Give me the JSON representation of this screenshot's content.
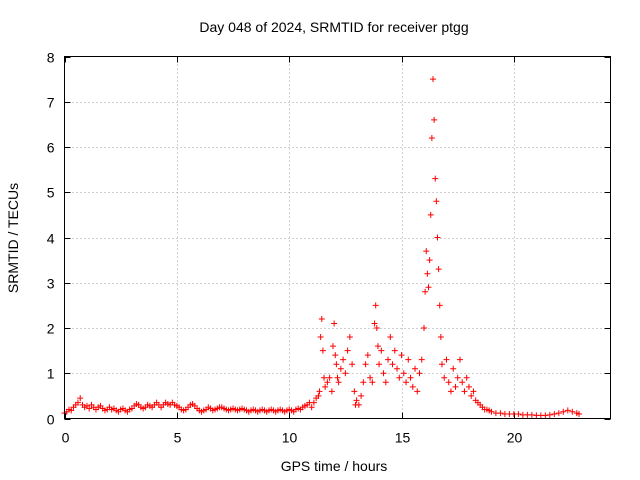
{
  "chart_data": {
    "type": "scatter",
    "title": "Day 048 of 2024, SRMTID for receiver ptgg",
    "xlabel": "GPS time / hours",
    "ylabel": "SRMTID / TECUs",
    "xlim": [
      0,
      24.3
    ],
    "ylim": [
      0,
      8
    ],
    "xticks": [
      0,
      5,
      10,
      15,
      20
    ],
    "yticks": [
      0,
      1,
      2,
      3,
      4,
      5,
      6,
      7,
      8
    ],
    "grid": true,
    "marker": "+",
    "color": "#ff0000",
    "series": [
      {
        "name": "SRMTID",
        "points": [
          [
            0.0,
            0.12
          ],
          [
            0.1,
            0.15
          ],
          [
            0.2,
            0.2
          ],
          [
            0.3,
            0.18
          ],
          [
            0.4,
            0.25
          ],
          [
            0.5,
            0.3
          ],
          [
            0.6,
            0.35
          ],
          [
            0.7,
            0.45
          ],
          [
            0.8,
            0.3
          ],
          [
            0.9,
            0.25
          ],
          [
            1.0,
            0.28
          ],
          [
            1.1,
            0.22
          ],
          [
            1.2,
            0.3
          ],
          [
            1.3,
            0.25
          ],
          [
            1.4,
            0.2
          ],
          [
            1.5,
            0.25
          ],
          [
            1.6,
            0.28
          ],
          [
            1.7,
            0.22
          ],
          [
            1.8,
            0.18
          ],
          [
            1.9,
            0.2
          ],
          [
            2.0,
            0.25
          ],
          [
            2.1,
            0.2
          ],
          [
            2.2,
            0.22
          ],
          [
            2.3,
            0.18
          ],
          [
            2.4,
            0.15
          ],
          [
            2.5,
            0.2
          ],
          [
            2.6,
            0.22
          ],
          [
            2.7,
            0.18
          ],
          [
            2.8,
            0.15
          ],
          [
            2.9,
            0.2
          ],
          [
            3.0,
            0.22
          ],
          [
            3.1,
            0.28
          ],
          [
            3.2,
            0.32
          ],
          [
            3.3,
            0.3
          ],
          [
            3.4,
            0.25
          ],
          [
            3.5,
            0.22
          ],
          [
            3.6,
            0.25
          ],
          [
            3.7,
            0.3
          ],
          [
            3.8,
            0.28
          ],
          [
            3.9,
            0.25
          ],
          [
            4.0,
            0.3
          ],
          [
            4.1,
            0.35
          ],
          [
            4.2,
            0.3
          ],
          [
            4.3,
            0.25
          ],
          [
            4.4,
            0.3
          ],
          [
            4.5,
            0.35
          ],
          [
            4.6,
            0.32
          ],
          [
            4.7,
            0.3
          ],
          [
            4.8,
            0.35
          ],
          [
            4.9,
            0.3
          ],
          [
            5.0,
            0.28
          ],
          [
            5.1,
            0.25
          ],
          [
            5.2,
            0.2
          ],
          [
            5.3,
            0.18
          ],
          [
            5.4,
            0.2
          ],
          [
            5.5,
            0.25
          ],
          [
            5.6,
            0.3
          ],
          [
            5.7,
            0.32
          ],
          [
            5.8,
            0.28
          ],
          [
            5.9,
            0.22
          ],
          [
            6.0,
            0.18
          ],
          [
            6.1,
            0.15
          ],
          [
            6.2,
            0.18
          ],
          [
            6.3,
            0.2
          ],
          [
            6.4,
            0.25
          ],
          [
            6.5,
            0.22
          ],
          [
            6.6,
            0.18
          ],
          [
            6.7,
            0.2
          ],
          [
            6.8,
            0.22
          ],
          [
            6.9,
            0.25
          ],
          [
            7.0,
            0.25
          ],
          [
            7.1,
            0.22
          ],
          [
            7.2,
            0.2
          ],
          [
            7.3,
            0.18
          ],
          [
            7.4,
            0.2
          ],
          [
            7.5,
            0.22
          ],
          [
            7.6,
            0.2
          ],
          [
            7.7,
            0.18
          ],
          [
            7.8,
            0.2
          ],
          [
            7.9,
            0.22
          ],
          [
            8.0,
            0.2
          ],
          [
            8.1,
            0.18
          ],
          [
            8.2,
            0.15
          ],
          [
            8.3,
            0.18
          ],
          [
            8.4,
            0.2
          ],
          [
            8.5,
            0.18
          ],
          [
            8.6,
            0.15
          ],
          [
            8.7,
            0.18
          ],
          [
            8.8,
            0.2
          ],
          [
            8.9,
            0.18
          ],
          [
            9.0,
            0.15
          ],
          [
            9.1,
            0.18
          ],
          [
            9.2,
            0.2
          ],
          [
            9.3,
            0.18
          ],
          [
            9.4,
            0.15
          ],
          [
            9.5,
            0.18
          ],
          [
            9.6,
            0.2
          ],
          [
            9.7,
            0.18
          ],
          [
            9.8,
            0.15
          ],
          [
            9.9,
            0.18
          ],
          [
            10.0,
            0.2
          ],
          [
            10.1,
            0.18
          ],
          [
            10.2,
            0.15
          ],
          [
            10.3,
            0.2
          ],
          [
            10.4,
            0.22
          ],
          [
            10.5,
            0.2
          ],
          [
            10.6,
            0.25
          ],
          [
            10.7,
            0.28
          ],
          [
            10.8,
            0.3
          ],
          [
            10.9,
            0.35
          ],
          [
            11.0,
            0.25
          ],
          [
            11.1,
            0.35
          ],
          [
            11.2,
            0.45
          ],
          [
            11.3,
            0.5
          ],
          [
            11.35,
            0.6
          ],
          [
            11.4,
            1.8
          ],
          [
            11.45,
            2.2
          ],
          [
            11.5,
            1.5
          ],
          [
            11.55,
            0.9
          ],
          [
            11.6,
            0.7
          ],
          [
            11.7,
            0.8
          ],
          [
            11.8,
            0.9
          ],
          [
            11.9,
            0.6
          ],
          [
            11.95,
            1.6
          ],
          [
            12.0,
            2.1
          ],
          [
            12.05,
            1.4
          ],
          [
            12.1,
            1.2
          ],
          [
            12.15,
            0.9
          ],
          [
            12.2,
            0.8
          ],
          [
            12.3,
            1.1
          ],
          [
            12.4,
            1.3
          ],
          [
            12.5,
            1.0
          ],
          [
            12.6,
            1.5
          ],
          [
            12.7,
            1.8
          ],
          [
            12.8,
            1.2
          ],
          [
            12.9,
            0.6
          ],
          [
            12.95,
            0.3
          ],
          [
            13.0,
            0.4
          ],
          [
            13.1,
            0.3
          ],
          [
            13.2,
            0.5
          ],
          [
            13.3,
            0.8
          ],
          [
            13.4,
            1.2
          ],
          [
            13.5,
            1.4
          ],
          [
            13.6,
            0.9
          ],
          [
            13.7,
            0.8
          ],
          [
            13.8,
            2.1
          ],
          [
            13.85,
            2.5
          ],
          [
            13.9,
            2.0
          ],
          [
            13.95,
            1.6
          ],
          [
            14.0,
            1.2
          ],
          [
            14.1,
            1.5
          ],
          [
            14.2,
            1.0
          ],
          [
            14.3,
            0.8
          ],
          [
            14.4,
            1.3
          ],
          [
            14.5,
            1.8
          ],
          [
            14.6,
            1.2
          ],
          [
            14.7,
            1.5
          ],
          [
            14.8,
            1.1
          ],
          [
            14.9,
            0.9
          ],
          [
            15.0,
            1.4
          ],
          [
            15.1,
            1.0
          ],
          [
            15.2,
            0.8
          ],
          [
            15.3,
            1.3
          ],
          [
            15.4,
            0.9
          ],
          [
            15.5,
            0.7
          ],
          [
            15.6,
            1.1
          ],
          [
            15.7,
            0.6
          ],
          [
            15.8,
            1.0
          ],
          [
            15.9,
            1.3
          ],
          [
            16.0,
            2.0
          ],
          [
            16.05,
            2.8
          ],
          [
            16.1,
            3.7
          ],
          [
            16.15,
            3.2
          ],
          [
            16.2,
            2.9
          ],
          [
            16.25,
            3.5
          ],
          [
            16.3,
            4.5
          ],
          [
            16.35,
            6.2
          ],
          [
            16.4,
            7.5
          ],
          [
            16.45,
            6.6
          ],
          [
            16.5,
            5.3
          ],
          [
            16.55,
            4.8
          ],
          [
            16.6,
            4.0
          ],
          [
            16.65,
            3.3
          ],
          [
            16.7,
            2.5
          ],
          [
            16.75,
            1.8
          ],
          [
            16.8,
            1.2
          ],
          [
            16.9,
            0.9
          ],
          [
            17.0,
            1.3
          ],
          [
            17.1,
            0.8
          ],
          [
            17.2,
            0.6
          ],
          [
            17.3,
            1.1
          ],
          [
            17.4,
            0.7
          ],
          [
            17.5,
            0.9
          ],
          [
            17.6,
            1.3
          ],
          [
            17.7,
            0.8
          ],
          [
            17.8,
            0.6
          ],
          [
            17.9,
            0.9
          ],
          [
            18.0,
            0.7
          ],
          [
            18.1,
            0.5
          ],
          [
            18.2,
            0.6
          ],
          [
            18.3,
            0.4
          ],
          [
            18.4,
            0.35
          ],
          [
            18.5,
            0.3
          ],
          [
            18.6,
            0.25
          ],
          [
            18.7,
            0.2
          ],
          [
            18.8,
            0.2
          ],
          [
            18.9,
            0.18
          ],
          [
            19.0,
            0.15
          ],
          [
            19.2,
            0.12
          ],
          [
            19.4,
            0.12
          ],
          [
            19.6,
            0.1
          ],
          [
            19.8,
            0.1
          ],
          [
            20.0,
            0.1
          ],
          [
            20.2,
            0.1
          ],
          [
            20.4,
            0.08
          ],
          [
            20.6,
            0.08
          ],
          [
            20.8,
            0.08
          ],
          [
            21.0,
            0.07
          ],
          [
            21.2,
            0.07
          ],
          [
            21.4,
            0.07
          ],
          [
            21.6,
            0.08
          ],
          [
            21.8,
            0.1
          ],
          [
            22.0,
            0.12
          ],
          [
            22.2,
            0.15
          ],
          [
            22.4,
            0.18
          ],
          [
            22.6,
            0.15
          ],
          [
            22.8,
            0.12
          ],
          [
            22.9,
            0.1
          ]
        ]
      }
    ]
  }
}
